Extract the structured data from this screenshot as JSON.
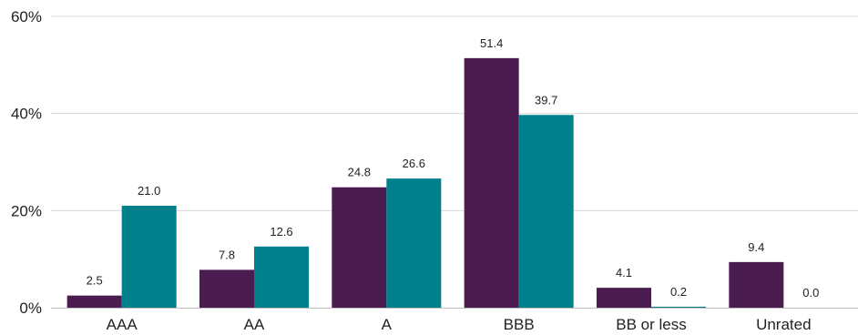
{
  "chart_data": {
    "type": "bar",
    "title": "",
    "xlabel": "",
    "ylabel": "",
    "categories": [
      "AAA",
      "AA",
      "A",
      "BBB",
      "BB or less",
      "Unrated"
    ],
    "series": [
      {
        "color": "#4b1c4f",
        "values": [
          2.5,
          7.8,
          24.8,
          51.4,
          4.1,
          9.4
        ],
        "labels": [
          "2.5",
          "7.8",
          "24.8",
          "51.4",
          "4.1",
          "9.4"
        ]
      },
      {
        "color": "#00808a",
        "values": [
          21.0,
          12.6,
          26.6,
          39.7,
          0.2,
          0.0
        ],
        "labels": [
          "21.0",
          "12.6",
          "26.6",
          "39.7",
          "0.2",
          "0.0"
        ]
      }
    ],
    "ylim": [
      0,
      60
    ],
    "yticks": [
      0,
      20,
      40,
      60
    ],
    "ytick_labels": [
      "0%",
      "20%",
      "40%",
      "60%"
    ],
    "grid": true,
    "legend": "none"
  }
}
